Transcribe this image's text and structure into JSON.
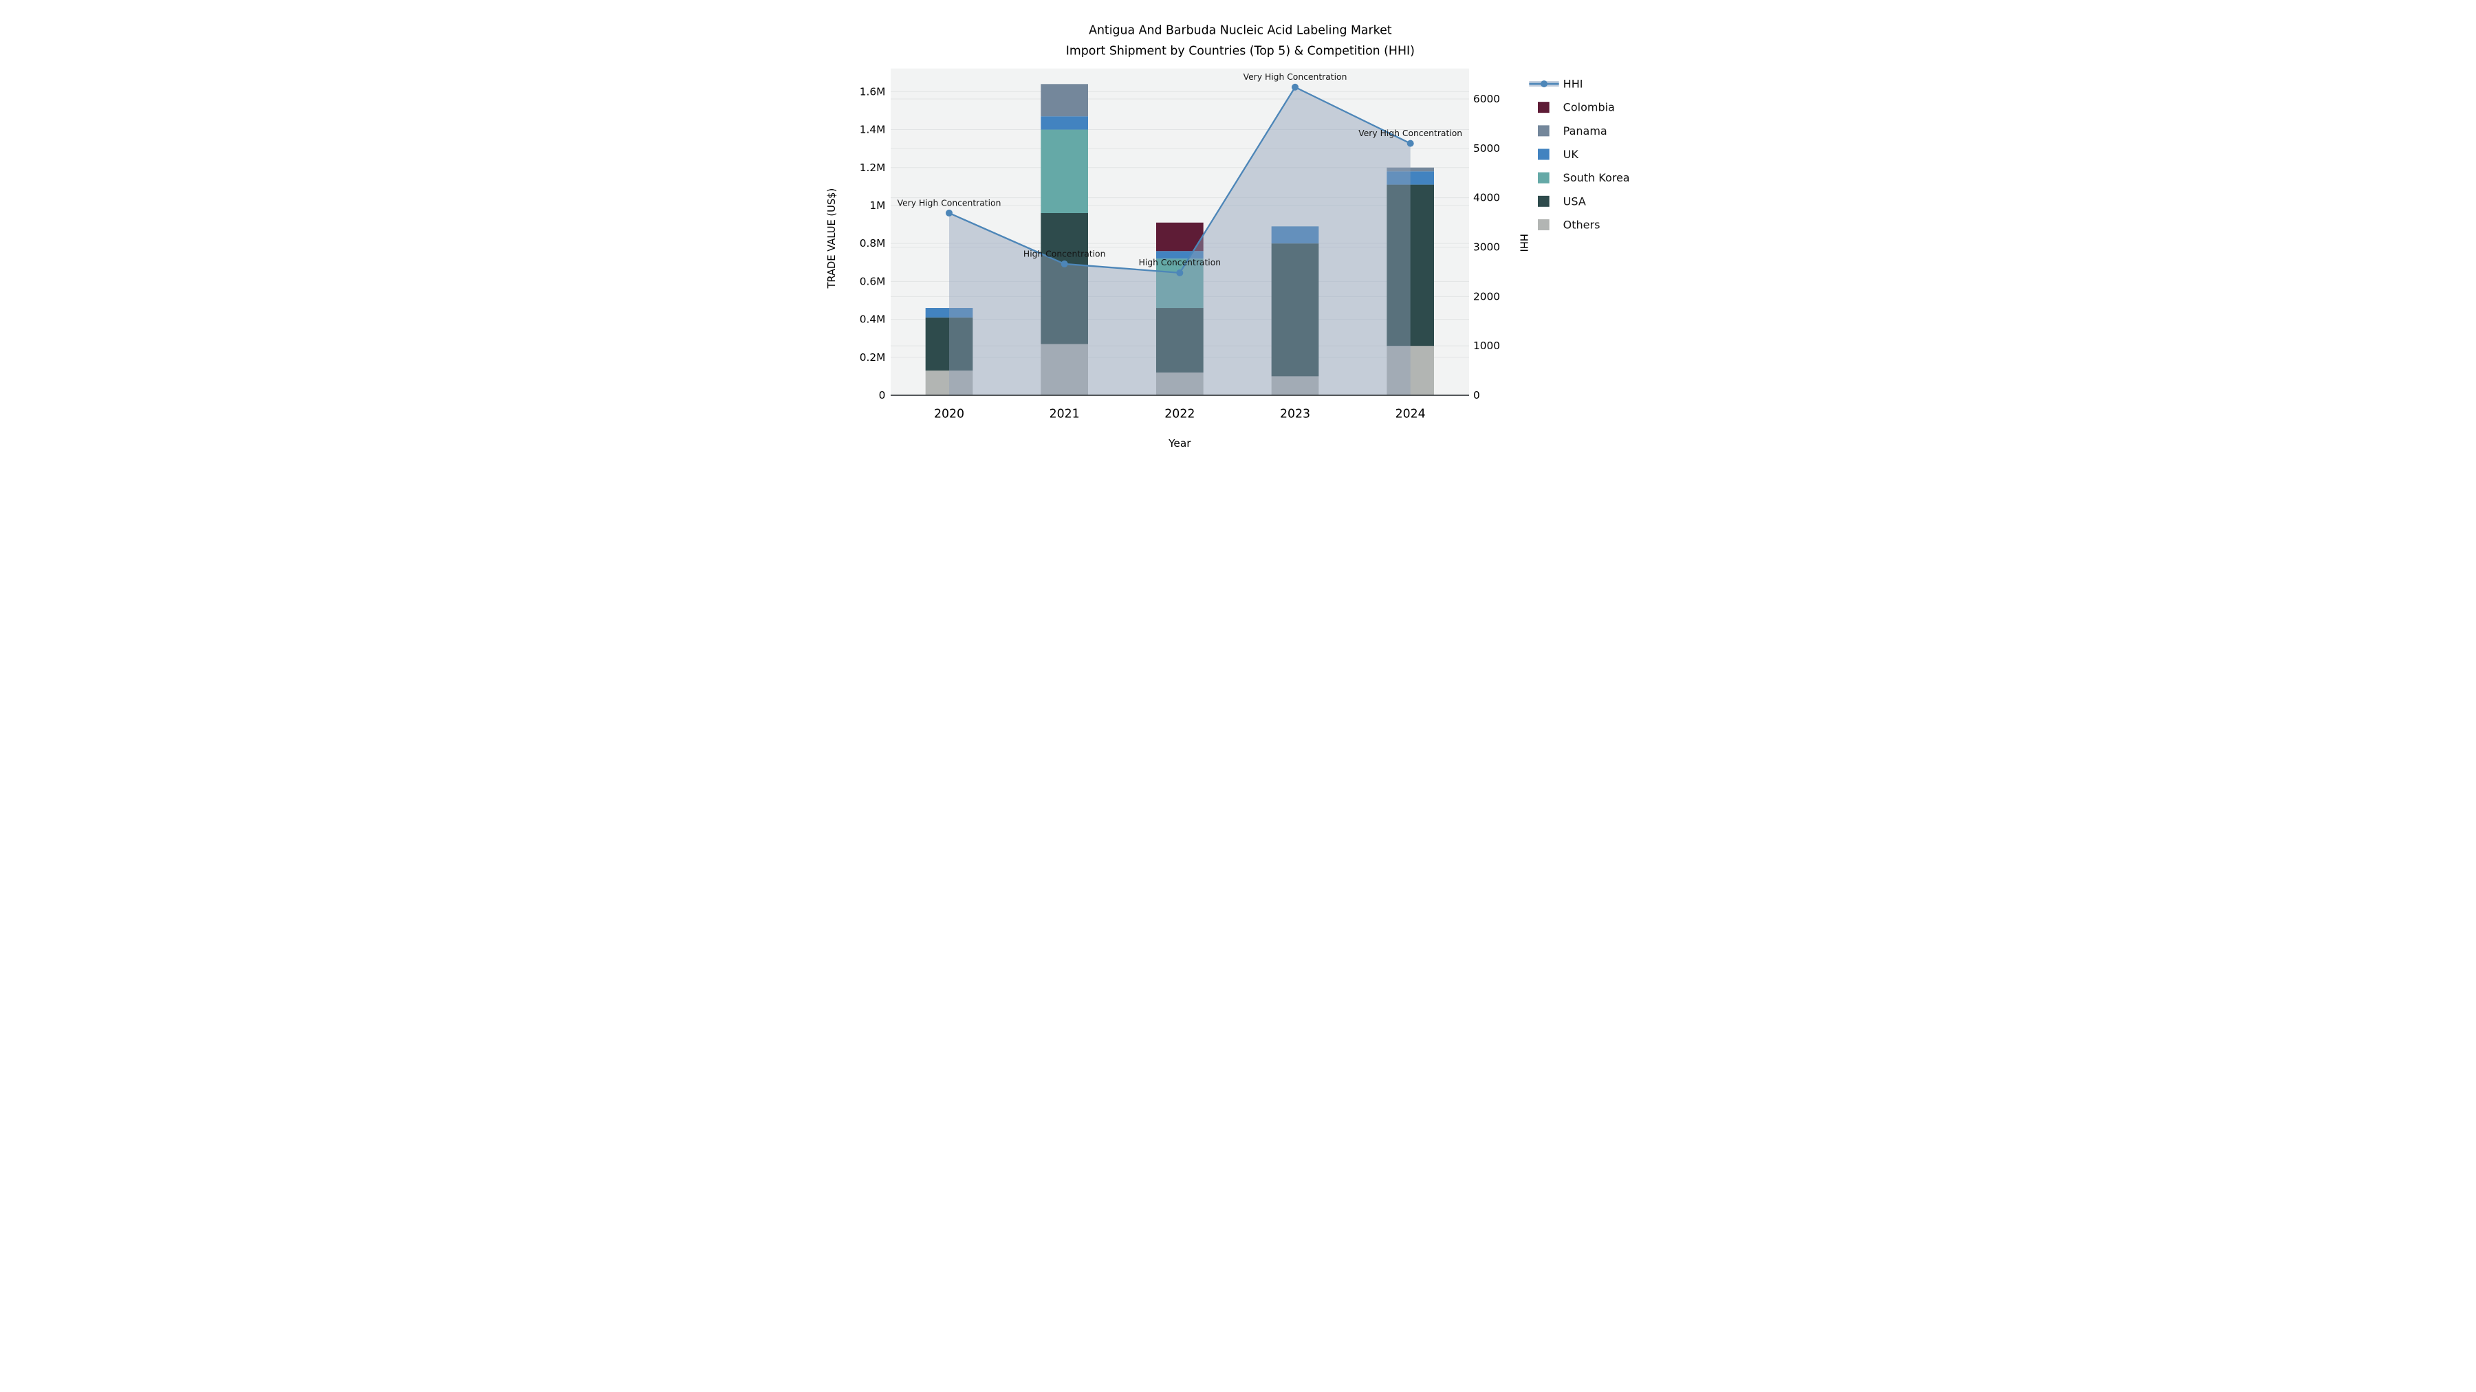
{
  "title": {
    "line1": "Antigua And Barbuda Nucleic Acid Labeling Market",
    "line2": "Import Shipment by Countries (Top 5) & Competition (HHI)"
  },
  "axes": {
    "x": {
      "title": "Year",
      "ticks": [
        "2020",
        "2021",
        "2022",
        "2023",
        "2024"
      ]
    },
    "y_left": {
      "title": "TRADE VALUE (US$)",
      "ticks": [
        "0",
        "0.2M",
        "0.4M",
        "0.6M",
        "0.8M",
        "1M",
        "1.2M",
        "1.4M",
        "1.6M"
      ],
      "tick_values_musd": [
        0,
        0.2,
        0.4,
        0.6,
        0.8,
        1.0,
        1.2,
        1.4,
        1.6
      ]
    },
    "y_right": {
      "title": "HHI",
      "ticks": [
        "0",
        "1000",
        "2000",
        "3000",
        "4000",
        "5000",
        "6000"
      ],
      "tick_values": [
        0,
        1000,
        2000,
        3000,
        4000,
        5000,
        6000
      ]
    }
  },
  "legend": {
    "items": [
      {
        "label": "HHI",
        "type": "line",
        "color": "#4d86b8",
        "band_color": "#c3cedd"
      },
      {
        "label": "Colombia",
        "type": "swatch",
        "color": "#5e1c36"
      },
      {
        "label": "Panama",
        "type": "swatch",
        "color": "#74879b"
      },
      {
        "label": "UK",
        "type": "swatch",
        "color": "#4283c0"
      },
      {
        "label": "South Korea",
        "type": "swatch",
        "color": "#65a9a7"
      },
      {
        "label": "USA",
        "type": "swatch",
        "color": "#2e4b4c"
      },
      {
        "label": "Others",
        "type": "swatch",
        "color": "#b2b5b3"
      }
    ]
  },
  "annotations": [
    {
      "year": "2020",
      "text": "Very High Concentration"
    },
    {
      "year": "2021",
      "text": "High Concentration"
    },
    {
      "year": "2022",
      "text": "High Concentration"
    },
    {
      "year": "2023",
      "text": "Very High Concentration"
    },
    {
      "year": "2024",
      "text": "Very High Concentration"
    }
  ],
  "chart_data": {
    "type": "bar+line",
    "title": "Antigua And Barbuda Nucleic Acid Labeling Market Import Shipment by Countries (Top 5) & Competition (HHI)",
    "categories": [
      "2020",
      "2021",
      "2022",
      "2023",
      "2024"
    ],
    "bar_unit": "Million US$ (trade value, left axis)",
    "stack_order_bottom_to_top": [
      "Others",
      "USA",
      "South Korea",
      "UK",
      "Panama",
      "Colombia"
    ],
    "series": [
      {
        "name": "Colombia",
        "values": [
          0,
          0,
          0.15,
          0,
          0
        ]
      },
      {
        "name": "Panama",
        "values": [
          0,
          0.17,
          0,
          0,
          0.02
        ]
      },
      {
        "name": "UK",
        "values": [
          0.05,
          0.07,
          0.04,
          0.09,
          0.07
        ]
      },
      {
        "name": "South Korea",
        "values": [
          0,
          0.44,
          0.26,
          0,
          0
        ]
      },
      {
        "name": "USA",
        "values": [
          0.28,
          0.69,
          0.34,
          0.7,
          0.85
        ]
      },
      {
        "name": "Others",
        "values": [
          0.13,
          0.27,
          0.12,
          0.1,
          0.26
        ]
      }
    ],
    "bar_totals_musd": [
      0.46,
      1.64,
      0.91,
      0.89,
      1.2
    ],
    "hhi_series": {
      "name": "HHI",
      "axis": "right",
      "values": [
        3690,
        2660,
        2480,
        6240,
        5100
      ]
    },
    "xlabel": "Year",
    "ylabel_left": "TRADE VALUE (US$)",
    "ylabel_right": "HHI",
    "ylim_left_musd": [
      0,
      1.722
    ],
    "ylim_right": [
      0,
      6617
    ],
    "grid": true,
    "legend_position": "right-outside"
  },
  "colors": {
    "figure_background": "#ffffff",
    "plot_background": "#f2f3f3",
    "gridline": "#e2e4e5",
    "axis_line": "#3b4043",
    "hhi_line": "#4d86b8",
    "hhi_area_fill": "rgba(141,160,185,0.45)",
    "text": "#000000",
    "annotation_text": "#141414"
  }
}
